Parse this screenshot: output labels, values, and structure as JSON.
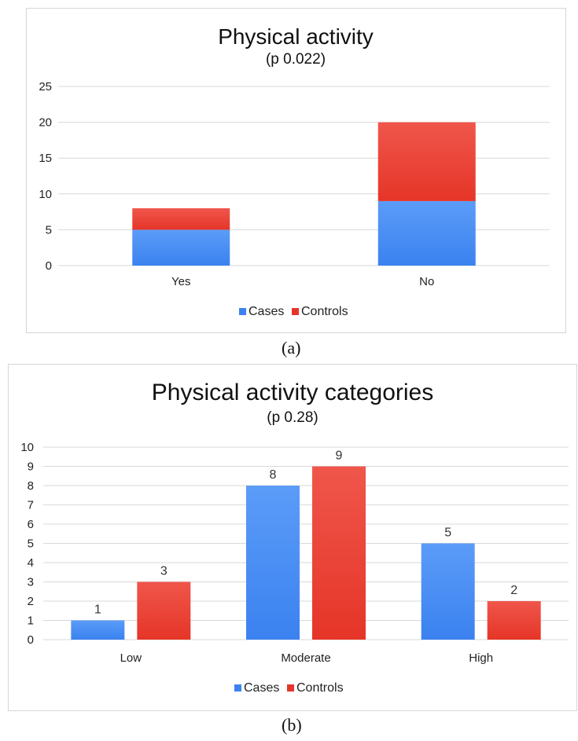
{
  "colors": {
    "cases": "#3b82f0",
    "cases_light": "#5b9cf8",
    "controls": "#e53528",
    "controls_light": "#f0564b"
  },
  "chart_data": [
    {
      "type": "bar",
      "stacked": true,
      "title": "Physical activity",
      "subtitle": "(p 0.022)",
      "categories": [
        "Yes",
        "No"
      ],
      "series": [
        {
          "name": "Cases",
          "values": [
            5,
            9
          ]
        },
        {
          "name": "Controls",
          "values": [
            3,
            11
          ]
        }
      ],
      "ylim": [
        0,
        25
      ],
      "yticks": [
        "0",
        "5",
        "10",
        "15",
        "20",
        "25"
      ],
      "grid": true,
      "legend": "bottom",
      "caption": "(a)"
    },
    {
      "type": "bar",
      "stacked": false,
      "title": "Physical activity categories",
      "subtitle": "(p 0.28)",
      "categories": [
        "Low",
        "Moderate",
        "High"
      ],
      "series": [
        {
          "name": "Cases",
          "values": [
            1,
            8,
            5
          ]
        },
        {
          "name": "Controls",
          "values": [
            3,
            9,
            2
          ]
        }
      ],
      "data_labels": {
        "Cases": [
          "1",
          "8",
          "5"
        ],
        "Controls": [
          "3",
          "9",
          "2"
        ]
      },
      "ylim": [
        0,
        10
      ],
      "yticks": [
        "0",
        "1",
        "2",
        "3",
        "4",
        "5",
        "6",
        "7",
        "8",
        "9",
        "10"
      ],
      "grid": true,
      "legend": "bottom",
      "caption": "(b)"
    }
  ]
}
